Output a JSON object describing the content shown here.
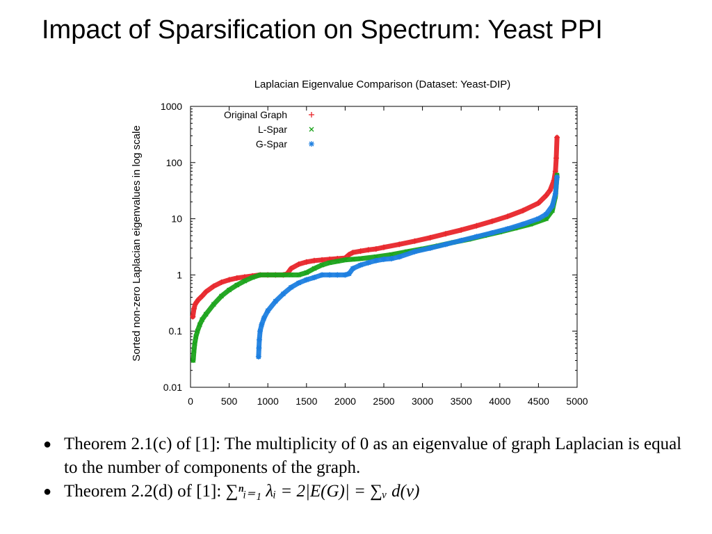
{
  "slide": {
    "title": "Impact of Sparsification on Spectrum: Yeast PPI"
  },
  "chart_data": {
    "type": "scatter",
    "title": "Laplacian Eigenvalue Comparison (Dataset: Yeast-DIP)",
    "xlabel": "",
    "ylabel": "Sorted non-zero Laplacian eigenvalues in log scale",
    "xlim": [
      0,
      5000
    ],
    "ylim": [
      0.01,
      1000
    ],
    "yscale": "log",
    "x_ticks": [
      0,
      500,
      1000,
      1500,
      2000,
      2500,
      3000,
      3500,
      4000,
      4500,
      5000
    ],
    "x_tick_labels": [
      "0",
      "500",
      "1000",
      "1500",
      "2000",
      "2500",
      "3000",
      "3500",
      "4000",
      "4500",
      "5000"
    ],
    "y_ticks": [
      0.01,
      0.1,
      1,
      10,
      100,
      1000
    ],
    "y_tick_labels": [
      "0.01",
      "0.1",
      "1",
      "10",
      "100",
      "1000"
    ],
    "legend_position": "top-left",
    "series": [
      {
        "name": "Original Graph",
        "marker": "plus",
        "color": "#e8262b",
        "x": [
          30,
          45,
          60,
          80,
          100,
          150,
          200,
          300,
          400,
          500,
          600,
          700,
          800,
          900,
          1000,
          1100,
          1200,
          1250,
          1300,
          1400,
          1500,
          1600,
          1700,
          1800,
          1900,
          2000,
          2050,
          2100,
          2200,
          2300,
          2400,
          2500,
          2700,
          2900,
          3100,
          3300,
          3500,
          3700,
          3900,
          4100,
          4300,
          4500,
          4600,
          4650,
          4700,
          4720,
          4730,
          4740
        ],
        "y": [
          0.18,
          0.25,
          0.3,
          0.33,
          0.36,
          0.42,
          0.5,
          0.63,
          0.74,
          0.82,
          0.88,
          0.92,
          0.96,
          1.0,
          1.0,
          1.0,
          1.0,
          1.05,
          1.3,
          1.55,
          1.7,
          1.8,
          1.85,
          1.9,
          1.95,
          2.0,
          2.3,
          2.5,
          2.65,
          2.8,
          2.9,
          3.1,
          3.5,
          4.0,
          4.6,
          5.4,
          6.3,
          7.5,
          9.0,
          11,
          14,
          19,
          26,
          32,
          48,
          70,
          120,
          280
        ]
      },
      {
        "name": "L-Spar",
        "marker": "cross",
        "color": "#1aa31a",
        "x": [
          35,
          45,
          55,
          70,
          90,
          120,
          150,
          200,
          300,
          400,
          500,
          600,
          700,
          800,
          900,
          1000,
          1100,
          1200,
          1300,
          1400,
          1500,
          1600,
          1700,
          1800,
          1900,
          2000,
          2100,
          2200,
          2400,
          2600,
          2800,
          3000,
          3200,
          3400,
          3600,
          3800,
          4000,
          4200,
          4400,
          4600,
          4680,
          4720,
          4740
        ],
        "y": [
          0.03,
          0.045,
          0.06,
          0.08,
          0.1,
          0.13,
          0.16,
          0.2,
          0.3,
          0.42,
          0.54,
          0.66,
          0.78,
          0.9,
          1.0,
          1.0,
          1.0,
          1.0,
          1.0,
          1.0,
          1.1,
          1.3,
          1.5,
          1.65,
          1.75,
          1.85,
          1.9,
          1.95,
          2.1,
          2.3,
          2.6,
          2.9,
          3.3,
          3.8,
          4.3,
          5.0,
          5.8,
          6.8,
          8.0,
          10,
          14,
          25,
          60
        ]
      },
      {
        "name": "G-Spar",
        "marker": "star",
        "color": "#1e7fe0",
        "x": [
          880,
          885,
          890,
          900,
          920,
          950,
          1000,
          1100,
          1200,
          1300,
          1400,
          1500,
          1600,
          1700,
          1800,
          1900,
          2000,
          2050,
          2100,
          2200,
          2300,
          2400,
          2500,
          2600,
          2700,
          2900,
          3100,
          3300,
          3500,
          3700,
          3900,
          4100,
          4300,
          4500,
          4600,
          4680,
          4720,
          4740
        ],
        "y": [
          0.035,
          0.05,
          0.07,
          0.1,
          0.13,
          0.17,
          0.23,
          0.34,
          0.46,
          0.6,
          0.72,
          0.82,
          0.9,
          1.0,
          1.0,
          1.0,
          1.0,
          1.05,
          1.3,
          1.5,
          1.65,
          1.8,
          1.9,
          1.95,
          2.1,
          2.6,
          3.0,
          3.5,
          4.1,
          4.8,
          5.6,
          6.6,
          8.0,
          10,
          12,
          17,
          28,
          55
        ]
      }
    ]
  },
  "bullets": [
    {
      "text": "Theorem 2.1(c) of [1]: The multiplicity of 0 as an eigenvalue of graph Laplacian is equal to the number of components of the graph."
    },
    {
      "prefix": "Theorem 2.2(d) of [1]:",
      "formula": "∑ⁿᵢ₌₁ λᵢ = 2|E(G)| = ∑ᵥ d(v)"
    }
  ]
}
